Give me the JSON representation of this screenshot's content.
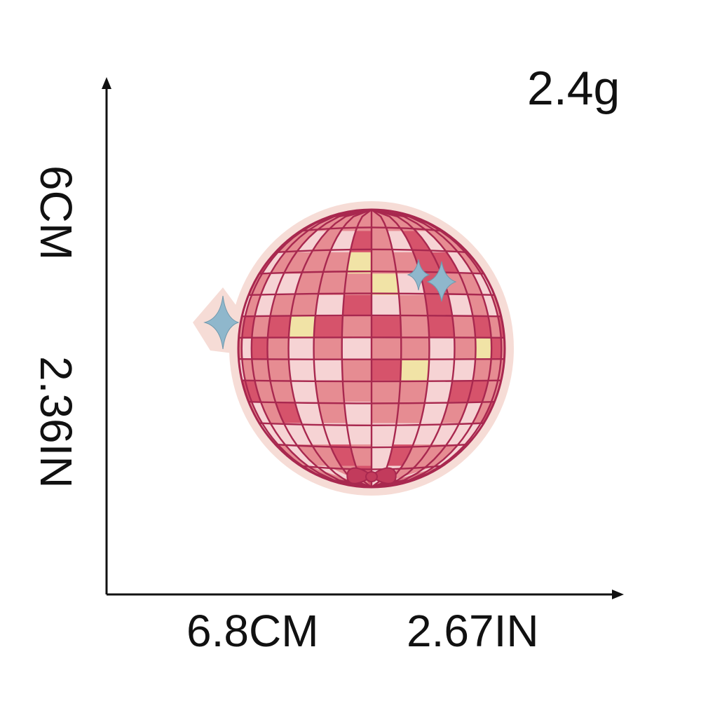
{
  "weight": "2.4g",
  "width_cm": "6.8CM",
  "width_in": "2.67IN",
  "height_cm": "6CM",
  "height_in": "2.36IN",
  "colors": {
    "stitch": "#a8284f",
    "tile_pink": "#e68c92",
    "tile_deep": "#d6536b",
    "tile_light": "#f6d3d4",
    "tile_cream": "#f1e3a6",
    "star": "#8fb7cc",
    "border": "#f6dcd6"
  }
}
